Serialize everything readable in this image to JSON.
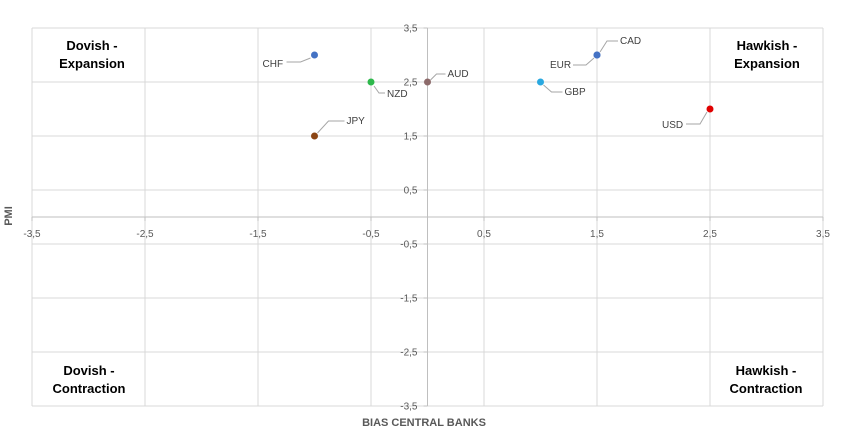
{
  "chart_data": {
    "type": "scatter",
    "xlabel": "BIAS CENTRAL BANKS",
    "ylabel": "PMI",
    "xlim": [
      -3.5,
      3.5
    ],
    "ylim": [
      -3.5,
      3.5
    ],
    "x_ticks": [
      -3.5,
      -2.5,
      -1.5,
      -0.5,
      0.5,
      1.5,
      2.5,
      3.5
    ],
    "y_ticks": [
      -3.5,
      -2.5,
      -1.5,
      -0.5,
      0.5,
      1.5,
      2.5,
      3.5
    ],
    "x_tick_labels": [
      "-3,5",
      "-2,5",
      "-1,5",
      "-0,5",
      "0,5",
      "1,5",
      "2,5",
      "3,5"
    ],
    "y_tick_labels": [
      "-3,5",
      "-2,5",
      "-1,5",
      "-0,5",
      "0,5",
      "1,5",
      "2,5",
      "3,5"
    ],
    "grid": true,
    "points": [
      {
        "label": "CHF",
        "x": -1.0,
        "y": 3.0,
        "color": "#4472C4"
      },
      {
        "label": "NZD",
        "x": -0.5,
        "y": 2.5,
        "color": "#2DB84B"
      },
      {
        "label": "AUD",
        "x": 0.0,
        "y": 2.5,
        "color": "#8C6A6A"
      },
      {
        "label": "JPY",
        "x": -1.0,
        "y": 1.5,
        "color": "#8B4513"
      },
      {
        "label": "CAD",
        "x": 1.5,
        "y": 3.0,
        "color": "#4472C4"
      },
      {
        "label": "EUR",
        "x": 1.5,
        "y": 3.0,
        "color": "#4472C4"
      },
      {
        "label": "GBP",
        "x": 1.0,
        "y": 2.5,
        "color": "#29A8E0"
      },
      {
        "label": "USD",
        "x": 2.5,
        "y": 2.0,
        "color": "#E00000"
      }
    ],
    "annotations": [
      {
        "line1": "Dovish -",
        "line2": "Expansion",
        "position": "top-left"
      },
      {
        "line1": "Hawkish -",
        "line2": "Expansion",
        "position": "top-right"
      },
      {
        "line1": "Dovish -",
        "line2": "Contraction",
        "position": "bottom-left"
      },
      {
        "line1": "Hawkish -",
        "line2": "Contraction",
        "position": "bottom-right"
      }
    ]
  }
}
